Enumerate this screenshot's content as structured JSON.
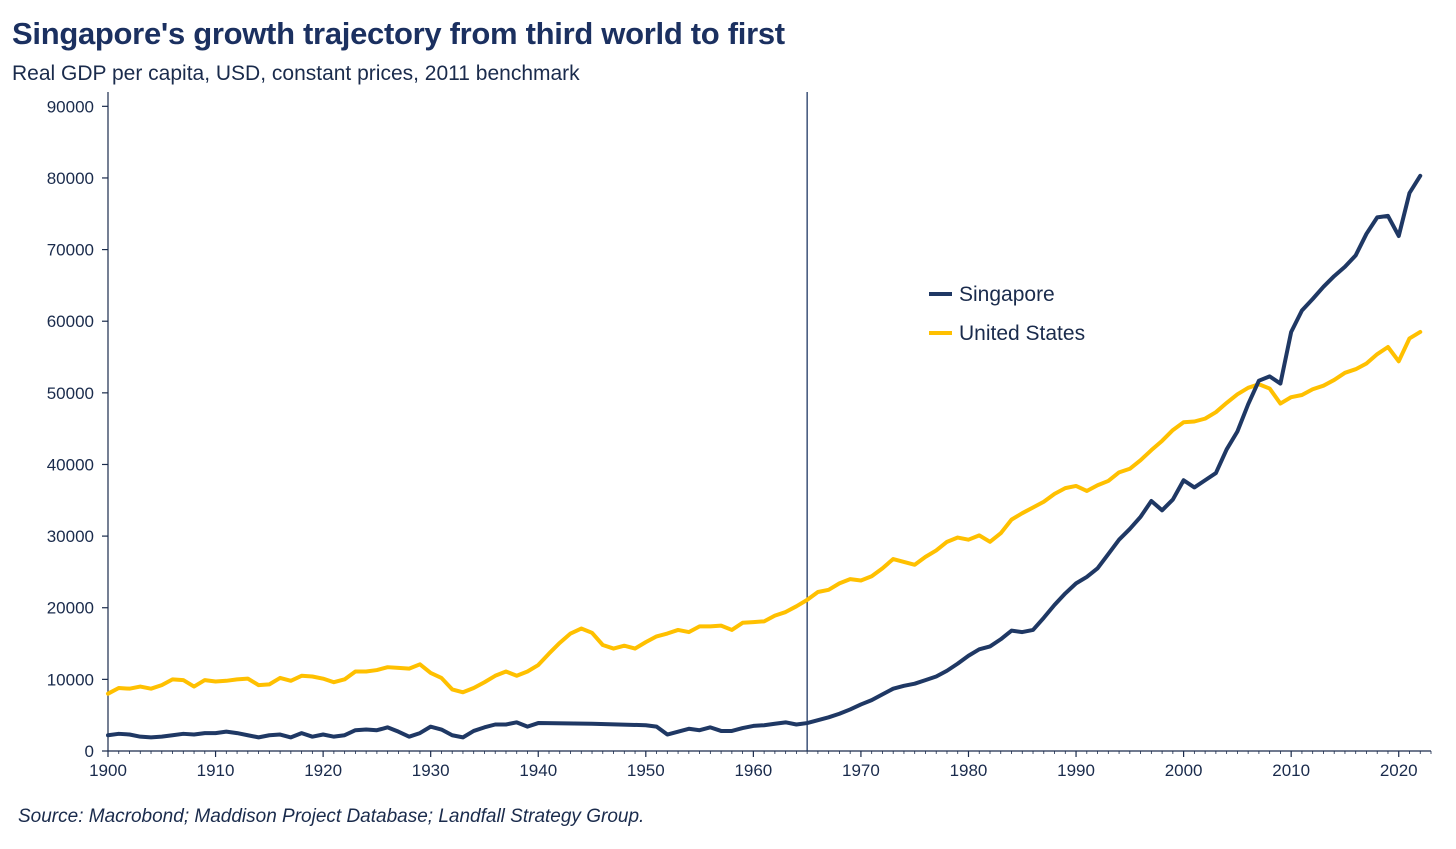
{
  "header": {
    "title": "Singapore's growth trajectory from third world to first",
    "subtitle": "Real GDP per capita, USD, constant prices, 2011 benchmark"
  },
  "footer": {
    "source": "Source: Macrobond; Maddison Project Database; Landfall Strategy Group."
  },
  "chart_data": {
    "type": "line",
    "title": "Singapore's growth trajectory from third world to first",
    "subtitle": "Real GDP per capita, USD, constant prices, 2011 benchmark",
    "xlabel": "",
    "ylabel": "",
    "xlim": [
      1900,
      2023
    ],
    "ylim": [
      0,
      92000
    ],
    "xticks": [
      1900,
      1910,
      1920,
      1930,
      1940,
      1950,
      1960,
      1970,
      1980,
      1990,
      2000,
      2010,
      2020
    ],
    "yticks": [
      0,
      10000,
      20000,
      30000,
      40000,
      50000,
      60000,
      70000,
      80000,
      90000
    ],
    "grid": false,
    "legend_position": "center-right",
    "vertical_marker_x": 1965,
    "series": [
      {
        "name": "Singapore",
        "color": "#1f3864",
        "points": [
          [
            1900,
            2200
          ],
          [
            1901,
            2400
          ],
          [
            1902,
            2300
          ],
          [
            1903,
            2000
          ],
          [
            1904,
            1900
          ],
          [
            1905,
            2000
          ],
          [
            1906,
            2200
          ],
          [
            1907,
            2400
          ],
          [
            1908,
            2300
          ],
          [
            1909,
            2500
          ],
          [
            1910,
            2500
          ],
          [
            1911,
            2700
          ],
          [
            1912,
            2500
          ],
          [
            1913,
            2200
          ],
          [
            1914,
            1900
          ],
          [
            1915,
            2200
          ],
          [
            1916,
            2300
          ],
          [
            1917,
            1900
          ],
          [
            1918,
            2500
          ],
          [
            1919,
            2000
          ],
          [
            1920,
            2300
          ],
          [
            1921,
            2000
          ],
          [
            1922,
            2200
          ],
          [
            1923,
            2900
          ],
          [
            1924,
            3000
          ],
          [
            1925,
            2900
          ],
          [
            1926,
            3300
          ],
          [
            1927,
            2700
          ],
          [
            1928,
            2000
          ],
          [
            1929,
            2500
          ],
          [
            1930,
            3400
          ],
          [
            1931,
            3000
          ],
          [
            1932,
            2200
          ],
          [
            1933,
            1900
          ],
          [
            1934,
            2800
          ],
          [
            1935,
            3300
          ],
          [
            1936,
            3700
          ],
          [
            1937,
            3700
          ],
          [
            1938,
            4000
          ],
          [
            1939,
            3400
          ],
          [
            1940,
            3900
          ],
          [
            1945,
            3800
          ],
          [
            1950,
            3600
          ],
          [
            1951,
            3400
          ],
          [
            1952,
            2300
          ],
          [
            1953,
            2700
          ],
          [
            1954,
            3100
          ],
          [
            1955,
            2900
          ],
          [
            1956,
            3300
          ],
          [
            1957,
            2800
          ],
          [
            1958,
            2800
          ],
          [
            1959,
            3200
          ],
          [
            1960,
            3500
          ],
          [
            1961,
            3600
          ],
          [
            1962,
            3800
          ],
          [
            1963,
            4000
          ],
          [
            1964,
            3700
          ],
          [
            1965,
            3900
          ],
          [
            1966,
            4300
          ],
          [
            1967,
            4700
          ],
          [
            1968,
            5200
          ],
          [
            1969,
            5800
          ],
          [
            1970,
            6500
          ],
          [
            1971,
            7100
          ],
          [
            1972,
            7900
          ],
          [
            1973,
            8700
          ],
          [
            1974,
            9100
          ],
          [
            1975,
            9400
          ],
          [
            1976,
            9900
          ],
          [
            1977,
            10400
          ],
          [
            1978,
            11200
          ],
          [
            1979,
            12200
          ],
          [
            1980,
            13300
          ],
          [
            1981,
            14200
          ],
          [
            1982,
            14600
          ],
          [
            1983,
            15600
          ],
          [
            1984,
            16800
          ],
          [
            1985,
            16600
          ],
          [
            1986,
            16900
          ],
          [
            1987,
            18600
          ],
          [
            1988,
            20400
          ],
          [
            1989,
            22000
          ],
          [
            1990,
            23400
          ],
          [
            1991,
            24300
          ],
          [
            1992,
            25500
          ],
          [
            1993,
            27500
          ],
          [
            1994,
            29500
          ],
          [
            1995,
            31000
          ],
          [
            1996,
            32700
          ],
          [
            1997,
            34900
          ],
          [
            1998,
            33600
          ],
          [
            1999,
            35100
          ],
          [
            2000,
            37800
          ],
          [
            2001,
            36800
          ],
          [
            2002,
            37800
          ],
          [
            2003,
            38800
          ],
          [
            2004,
            42100
          ],
          [
            2005,
            44600
          ],
          [
            2006,
            48400
          ],
          [
            2007,
            51700
          ],
          [
            2008,
            52300
          ],
          [
            2009,
            51300
          ],
          [
            2010,
            58500
          ],
          [
            2011,
            61500
          ],
          [
            2012,
            63100
          ],
          [
            2013,
            64800
          ],
          [
            2014,
            66300
          ],
          [
            2015,
            67600
          ],
          [
            2016,
            69200
          ],
          [
            2017,
            72200
          ],
          [
            2018,
            74500
          ],
          [
            2019,
            74700
          ],
          [
            2020,
            71900
          ],
          [
            2021,
            77900
          ],
          [
            2022,
            80300
          ]
        ]
      },
      {
        "name": "United States",
        "color": "#ffc000",
        "points": [
          [
            1900,
            8000
          ],
          [
            1901,
            8800
          ],
          [
            1902,
            8700
          ],
          [
            1903,
            9000
          ],
          [
            1904,
            8700
          ],
          [
            1905,
            9200
          ],
          [
            1906,
            10000
          ],
          [
            1907,
            9900
          ],
          [
            1908,
            9000
          ],
          [
            1909,
            9900
          ],
          [
            1910,
            9700
          ],
          [
            1911,
            9800
          ],
          [
            1912,
            10000
          ],
          [
            1913,
            10100
          ],
          [
            1914,
            9200
          ],
          [
            1915,
            9300
          ],
          [
            1916,
            10200
          ],
          [
            1917,
            9800
          ],
          [
            1918,
            10500
          ],
          [
            1919,
            10400
          ],
          [
            1920,
            10100
          ],
          [
            1921,
            9600
          ],
          [
            1922,
            10000
          ],
          [
            1923,
            11100
          ],
          [
            1924,
            11100
          ],
          [
            1925,
            11300
          ],
          [
            1926,
            11700
          ],
          [
            1927,
            11600
          ],
          [
            1928,
            11500
          ],
          [
            1929,
            12100
          ],
          [
            1930,
            10900
          ],
          [
            1931,
            10200
          ],
          [
            1932,
            8600
          ],
          [
            1933,
            8200
          ],
          [
            1934,
            8800
          ],
          [
            1935,
            9600
          ],
          [
            1936,
            10500
          ],
          [
            1937,
            11100
          ],
          [
            1938,
            10500
          ],
          [
            1939,
            11100
          ],
          [
            1940,
            12000
          ],
          [
            1941,
            13600
          ],
          [
            1942,
            15100
          ],
          [
            1943,
            16400
          ],
          [
            1944,
            17100
          ],
          [
            1945,
            16500
          ],
          [
            1946,
            14800
          ],
          [
            1947,
            14300
          ],
          [
            1948,
            14700
          ],
          [
            1949,
            14300
          ],
          [
            1950,
            15200
          ],
          [
            1951,
            16000
          ],
          [
            1952,
            16400
          ],
          [
            1953,
            16900
          ],
          [
            1954,
            16600
          ],
          [
            1955,
            17400
          ],
          [
            1956,
            17400
          ],
          [
            1957,
            17500
          ],
          [
            1958,
            16900
          ],
          [
            1959,
            17900
          ],
          [
            1960,
            18000
          ],
          [
            1961,
            18100
          ],
          [
            1962,
            18900
          ],
          [
            1963,
            19400
          ],
          [
            1964,
            20200
          ],
          [
            1965,
            21100
          ],
          [
            1966,
            22200
          ],
          [
            1967,
            22500
          ],
          [
            1968,
            23400
          ],
          [
            1969,
            24000
          ],
          [
            1970,
            23800
          ],
          [
            1971,
            24400
          ],
          [
            1972,
            25500
          ],
          [
            1973,
            26800
          ],
          [
            1974,
            26400
          ],
          [
            1975,
            26000
          ],
          [
            1976,
            27100
          ],
          [
            1977,
            28000
          ],
          [
            1978,
            29200
          ],
          [
            1979,
            29800
          ],
          [
            1980,
            29500
          ],
          [
            1981,
            30100
          ],
          [
            1982,
            29200
          ],
          [
            1983,
            30400
          ],
          [
            1984,
            32300
          ],
          [
            1985,
            33200
          ],
          [
            1986,
            34000
          ],
          [
            1987,
            34800
          ],
          [
            1988,
            35900
          ],
          [
            1989,
            36700
          ],
          [
            1990,
            37000
          ],
          [
            1991,
            36300
          ],
          [
            1992,
            37100
          ],
          [
            1993,
            37700
          ],
          [
            1994,
            38900
          ],
          [
            1995,
            39400
          ],
          [
            1996,
            40600
          ],
          [
            1997,
            42000
          ],
          [
            1998,
            43300
          ],
          [
            1999,
            44800
          ],
          [
            2000,
            45900
          ],
          [
            2001,
            46000
          ],
          [
            2002,
            46400
          ],
          [
            2003,
            47300
          ],
          [
            2004,
            48600
          ],
          [
            2005,
            49800
          ],
          [
            2006,
            50700
          ],
          [
            2007,
            51200
          ],
          [
            2008,
            50600
          ],
          [
            2009,
            48500
          ],
          [
            2010,
            49400
          ],
          [
            2011,
            49700
          ],
          [
            2012,
            50500
          ],
          [
            2013,
            51000
          ],
          [
            2014,
            51800
          ],
          [
            2015,
            52800
          ],
          [
            2016,
            53300
          ],
          [
            2017,
            54100
          ],
          [
            2018,
            55400
          ],
          [
            2019,
            56400
          ],
          [
            2020,
            54400
          ],
          [
            2021,
            57600
          ],
          [
            2022,
            58500
          ]
        ]
      }
    ]
  }
}
